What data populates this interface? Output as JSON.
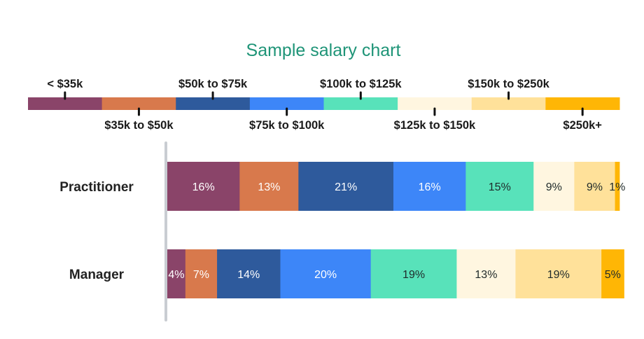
{
  "chart_data": {
    "type": "bar",
    "orientation": "horizontal",
    "stacked": true,
    "normalized": true,
    "title": "Sample salary chart",
    "categories": [
      "Practitioner",
      "Manager"
    ],
    "series": [
      {
        "name": "< $35k",
        "color": "#8A4469",
        "values": [
          16,
          4
        ],
        "labels": [
          "16%",
          "4%"
        ],
        "label_color": "#ffffff"
      },
      {
        "name": "$35k to $50k",
        "color": "#D8794C",
        "values": [
          13,
          7
        ],
        "labels": [
          "13%",
          "7%"
        ],
        "label_color": "#ffffff"
      },
      {
        "name": "$50k to $75k",
        "color": "#2E5A9C",
        "values": [
          21,
          14
        ],
        "labels": [
          "21%",
          "14%"
        ],
        "label_color": "#ffffff"
      },
      {
        "name": "$75k to $100k",
        "color": "#3D86F8",
        "values": [
          16,
          20
        ],
        "labels": [
          "16%",
          "20%"
        ],
        "label_color": "#ffffff"
      },
      {
        "name": "$100k to $125k",
        "color": "#58E2BA",
        "values": [
          15,
          19
        ],
        "labels": [
          "15%",
          "19%"
        ],
        "label_color": "#1f2a2a"
      },
      {
        "name": "$125k to $150k",
        "color": "#FFF6E0",
        "values": [
          9,
          13
        ],
        "labels": [
          "9%",
          "13%"
        ],
        "label_color": "#1f2a2a"
      },
      {
        "name": "$150k to $250k",
        "color": "#FFE19A",
        "values": [
          9,
          19
        ],
        "labels": [
          "9%",
          "19%"
        ],
        "label_color": "#1f2a2a"
      },
      {
        "name": "$250k+",
        "color": "#FFB605",
        "values": [
          1,
          5
        ],
        "labels": [
          "1%",
          "5%"
        ],
        "label_color": "#1f2a2a"
      }
    ],
    "xlim": [
      0,
      100
    ],
    "legend_position": "top",
    "grid": false,
    "title_color": "#1E9477"
  }
}
